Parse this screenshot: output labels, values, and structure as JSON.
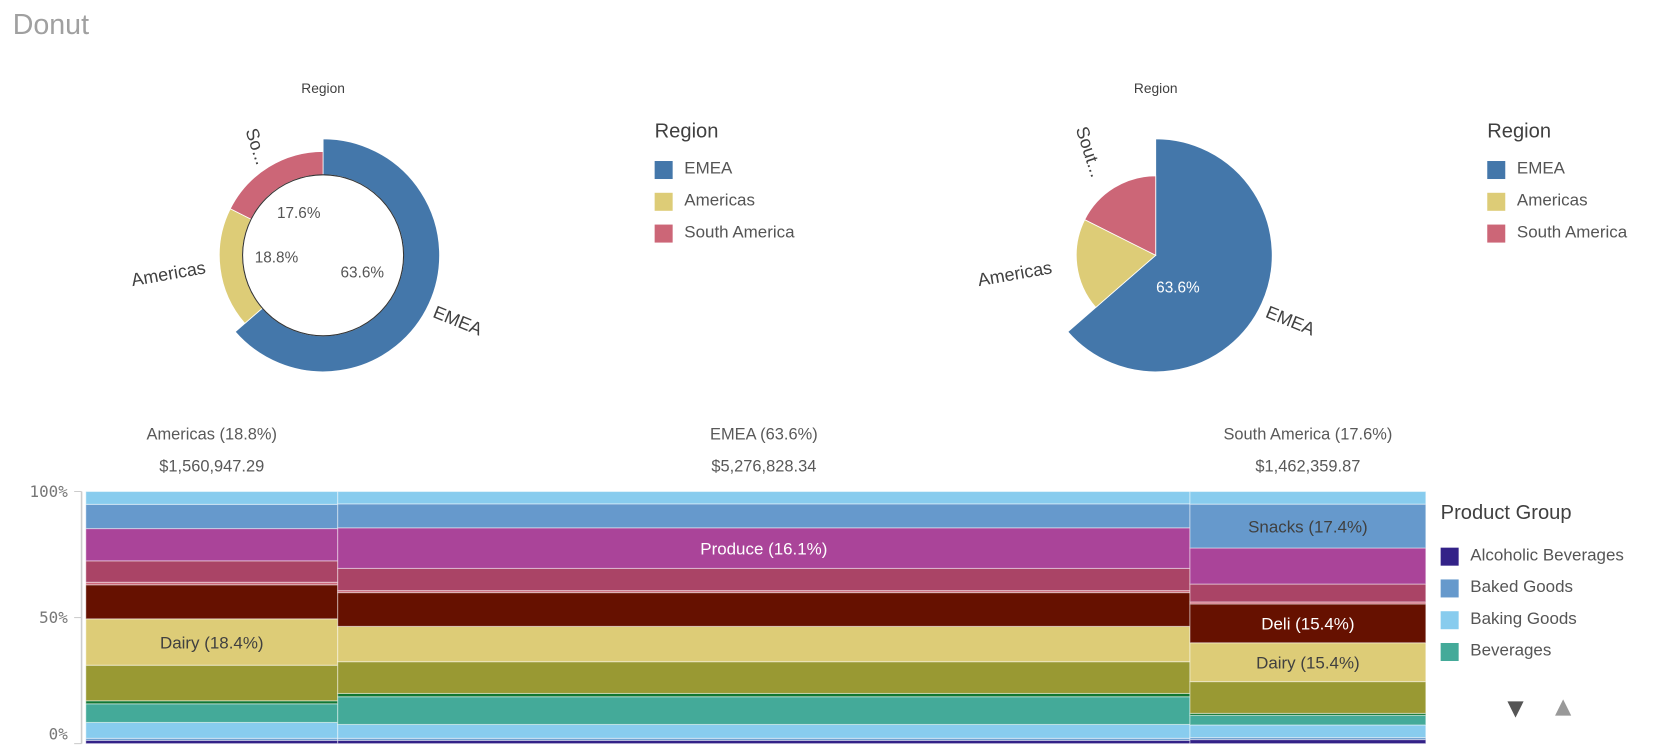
{
  "page": {
    "title": "Donut"
  },
  "colors": {
    "EMEA": "#4477aa",
    "Americas": "#ddcc77",
    "South America": "#cc6677"
  },
  "chart_data": [
    {
      "type": "pie",
      "variant": "donut",
      "title": "Region",
      "slices": [
        {
          "label": "EMEA",
          "value": 63.6,
          "display_label": "EMEA",
          "pct_label": "63.6%",
          "color": "#4477aa"
        },
        {
          "label": "Americas",
          "value": 18.8,
          "display_label": "Americas",
          "pct_label": "18.8%",
          "color": "#ddcc77"
        },
        {
          "label": "South America",
          "value": 17.6,
          "display_label": "So...",
          "pct_label": "17.6%",
          "color": "#cc6677"
        }
      ],
      "legend": {
        "title": "Region",
        "placement": "right",
        "items": [
          "EMEA",
          "Americas",
          "South America"
        ]
      }
    },
    {
      "type": "pie",
      "title": "Region",
      "slices": [
        {
          "label": "EMEA",
          "value": 63.6,
          "display_label": "EMEA",
          "pct_label": "63.6%",
          "color": "#4477aa"
        },
        {
          "label": "Americas",
          "value": 18.8,
          "display_label": "Americas",
          "pct_label": "",
          "color": "#ddcc77"
        },
        {
          "label": "South America",
          "value": 17.6,
          "display_label": "Sout...",
          "pct_label": "",
          "color": "#cc6677"
        }
      ],
      "legend": {
        "title": "Region",
        "placement": "right",
        "items": [
          "EMEA",
          "Americas",
          "South America"
        ]
      }
    },
    {
      "type": "bar",
      "variant": "mekko",
      "ylim": [
        0,
        100
      ],
      "yticks": [
        "0%",
        "50%",
        "100%"
      ],
      "columns": [
        {
          "header": "Americas (18.8%)",
          "amount": "$1,560,947.29",
          "width_pct": 18.8,
          "segments": [
            1.3,
            0.8,
            6.3,
            7.4,
            1.2,
            14.1,
            18.4,
            13.5,
            1.0,
            8.5,
            12.8,
            9.6,
            5.1
          ],
          "labels": {
            "6": "Dairy (18.4%)"
          }
        },
        {
          "header": "EMEA (63.6%)",
          "amount": "$5,276,828.34",
          "width_pct": 63.6,
          "segments": [
            1.3,
            0.8,
            5.5,
            11.0,
            1.3,
            12.6,
            14.0,
            13.4,
            0.8,
            8.8,
            16.1,
            9.5,
            4.9
          ],
          "labels": {
            "10": "Produce (16.1%)"
          }
        },
        {
          "header": "South America (17.6%)",
          "amount": "$1,462,359.87",
          "width_pct": 17.6,
          "segments": [
            1.6,
            0.8,
            5.0,
            3.8,
            0.8,
            12.6,
            15.4,
            15.4,
            0.8,
            7.1,
            14.3,
            17.4,
            5.0
          ],
          "labels": {
            "11": "Snacks (17.4%)",
            "7": "Deli (15.4%)",
            "6": "Dairy (15.4%)"
          }
        }
      ],
      "series": [
        {
          "name": "Alcoholic Beverages",
          "color": "#332288"
        },
        {
          "name": "Baked Goods",
          "color": "#6699cc"
        },
        {
          "name": "Baking Goods",
          "color": "#88ccee"
        },
        {
          "name": "Beverages",
          "color": "#44aa99"
        },
        {
          "name": "",
          "color": "#117733"
        },
        {
          "name": "",
          "color": "#999933"
        },
        {
          "name": "Dairy",
          "color": "#ddcc77"
        },
        {
          "name": "Deli",
          "color": "#661100"
        },
        {
          "name": "",
          "color": "#cc6677"
        },
        {
          "name": "",
          "color": "#aa4466"
        },
        {
          "name": "Produce",
          "color": "#aa4499"
        },
        {
          "name": "Snacks",
          "color": "#6699cc"
        },
        {
          "name": "",
          "color": "#88ccee"
        }
      ],
      "legend": {
        "title": "Product Group",
        "placement": "right",
        "items": [
          {
            "label": "Alcoholic Beverages",
            "color": "#332288"
          },
          {
            "label": "Baked Goods",
            "color": "#6699cc"
          },
          {
            "label": "Baking Goods",
            "color": "#88ccee"
          },
          {
            "label": "Beverages",
            "color": "#44aa99"
          }
        ],
        "scroll_down": "▼",
        "scroll_up": "▲"
      }
    }
  ]
}
